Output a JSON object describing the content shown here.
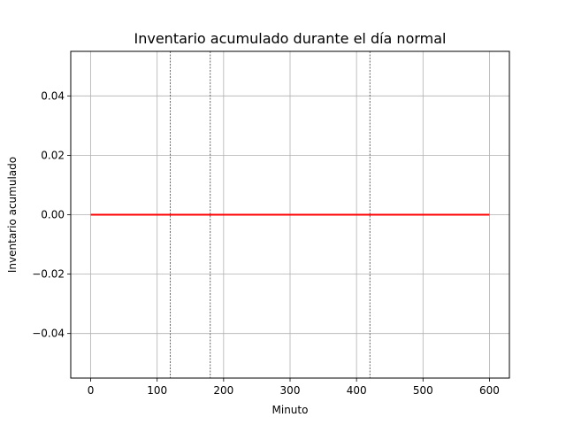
{
  "chart_data": {
    "type": "line",
    "title": "Inventario acumulado durante el día normal",
    "xlabel": "Minuto",
    "ylabel": "Inventario acumulado",
    "xlim": [
      -30,
      630
    ],
    "ylim": [
      -0.055,
      0.055
    ],
    "x_ticks": [
      0,
      100,
      200,
      300,
      400,
      500,
      600
    ],
    "x_tick_labels": [
      "0",
      "100",
      "200",
      "300",
      "400",
      "500",
      "600"
    ],
    "y_ticks": [
      -0.04,
      -0.02,
      0.0,
      0.02,
      0.04
    ],
    "y_tick_labels": [
      "−0.04",
      "−0.02",
      "0.00",
      "0.02",
      "0.04"
    ],
    "grid": true,
    "vertical_reference_lines": [
      120,
      180,
      420
    ],
    "series": [
      {
        "color": "#ff0000",
        "x": [
          0,
          600
        ],
        "y": [
          0,
          0
        ]
      }
    ],
    "colors": {
      "grid": "#b0b0b0",
      "reference_line": "#000000",
      "axes": "#000000"
    }
  }
}
